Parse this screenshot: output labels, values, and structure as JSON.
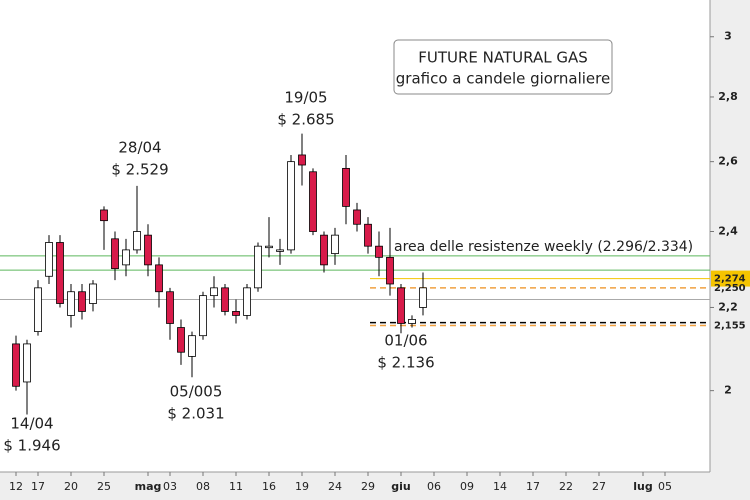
{
  "chart_data": {
    "type": "candlestick",
    "title": [
      "FUTURE NATURAL GAS",
      "grafico a candele giornaliere"
    ],
    "annotations": {
      "high_0428": [
        "28/04",
        "$ 2.529"
      ],
      "high_0519": [
        "19/05",
        "$ 2.685"
      ],
      "low_0414": [
        "14/04",
        "$ 1.946"
      ],
      "low_0505": [
        "05/005",
        "$ 2.031"
      ],
      "low_0601": [
        "01/06",
        "$ 2.136"
      ],
      "resistance": "area delle resistenze weekly (2.296/2.334)"
    },
    "categories": [
      null,
      "12",
      null,
      "17",
      null,
      null,
      "20",
      null,
      null,
      "25",
      null,
      null,
      null,
      "mag",
      null,
      "03",
      null,
      null,
      "08",
      null,
      null,
      "11",
      null,
      null,
      "16",
      null,
      null,
      "19",
      null,
      null,
      "24",
      null,
      null,
      "29",
      null,
      null,
      "giu",
      null,
      null,
      "06",
      null,
      null,
      "09",
      null,
      null,
      "14",
      null,
      null,
      "17",
      null,
      null,
      "22",
      null,
      null,
      "27",
      null,
      null,
      null,
      "lug",
      null,
      "05",
      null,
      null,
      null
    ],
    "open": [
      null,
      2.11,
      2.02,
      2.14,
      2.28,
      2.37,
      2.18,
      2.24,
      2.21,
      2.46,
      2.38,
      2.31,
      2.35,
      2.39,
      2.31,
      2.24,
      2.15,
      2.08,
      2.13,
      2.23,
      2.25,
      2.19,
      2.18,
      2.25,
      2.36,
      2.35,
      2.35,
      2.62,
      2.57,
      2.39,
      2.34,
      2.58,
      2.46,
      2.42,
      2.36,
      2.33,
      2.25,
      2.16,
      2.2,
      null,
      null,
      null,
      null,
      null,
      null,
      null,
      null,
      null,
      null,
      null,
      null,
      null,
      null,
      null,
      null,
      null,
      null,
      null,
      null,
      null,
      null,
      null,
      null,
      null
    ],
    "high": [
      null,
      2.13,
      2.12,
      2.27,
      2.39,
      2.39,
      2.26,
      2.26,
      2.27,
      2.47,
      2.4,
      2.38,
      2.529,
      2.42,
      2.33,
      2.25,
      2.17,
      2.14,
      2.24,
      2.28,
      2.26,
      2.22,
      2.26,
      2.37,
      2.44,
      2.38,
      2.62,
      2.685,
      2.58,
      2.4,
      2.41,
      2.62,
      2.48,
      2.44,
      2.4,
      2.41,
      2.26,
      2.18,
      2.29,
      null,
      null,
      null,
      null,
      null,
      null,
      null,
      null,
      null,
      null,
      null,
      null,
      null,
      null,
      null,
      null,
      null,
      null,
      null,
      null,
      null,
      null,
      null,
      null,
      null
    ],
    "low": [
      null,
      2.0,
      1.946,
      2.13,
      2.26,
      2.2,
      2.15,
      2.17,
      2.19,
      2.35,
      2.27,
      2.28,
      2.34,
      2.28,
      2.2,
      2.12,
      2.06,
      2.031,
      2.12,
      2.2,
      2.18,
      2.16,
      2.17,
      2.24,
      2.33,
      2.31,
      2.34,
      2.53,
      2.39,
      2.29,
      2.31,
      2.42,
      2.4,
      2.34,
      2.28,
      2.23,
      2.136,
      2.15,
      2.18,
      null,
      null,
      null,
      null,
      null,
      null,
      null,
      null,
      null,
      null,
      null,
      null,
      null,
      null,
      null,
      null,
      null,
      null,
      null,
      null,
      null,
      null,
      null,
      null,
      null
    ],
    "close": [
      null,
      2.01,
      2.11,
      2.25,
      2.37,
      2.21,
      2.24,
      2.19,
      2.26,
      2.43,
      2.3,
      2.35,
      2.4,
      2.31,
      2.24,
      2.16,
      2.09,
      2.13,
      2.23,
      2.25,
      2.19,
      2.18,
      2.25,
      2.36,
      2.36,
      2.35,
      2.6,
      2.59,
      2.4,
      2.31,
      2.39,
      2.47,
      2.42,
      2.36,
      2.33,
      2.26,
      2.16,
      2.17,
      2.25,
      null,
      null,
      null,
      null,
      null,
      null,
      null,
      null,
      null,
      null,
      null,
      null,
      null,
      null,
      null,
      null,
      null,
      null,
      null,
      null,
      null,
      null,
      null,
      null,
      null
    ],
    "up_color": "#ffffff",
    "down_color": "#d81b4a",
    "ylim": [
      1.822,
      3.129
    ],
    "log_y": true,
    "yticks": [
      2,
      {
        "value": 2.2,
        "label": "2,2"
      },
      {
        "value": 2.4,
        "label": "2,4"
      },
      {
        "value": 2.6,
        "label": "2,6"
      },
      {
        "value": 2.8,
        "label": "2,8"
      },
      3
    ],
    "levels": [
      {
        "value": 2.334,
        "color": "#5cb85c"
      },
      {
        "value": 2.296,
        "color": "#5cb85c"
      },
      {
        "value": 2.274,
        "label": "2,274",
        "color": "#f5c400"
      },
      {
        "value": 2.25,
        "label": "2,250",
        "color": "#f0a040",
        "dashed": true
      },
      {
        "value": 2.22,
        "color": "#aaaaaa"
      },
      {
        "value": 2.162,
        "color": "#000000",
        "dashed": true
      },
      {
        "value": 2.155,
        "label": "2,155",
        "color": "#f0a040",
        "dashed": true
      }
    ]
  }
}
